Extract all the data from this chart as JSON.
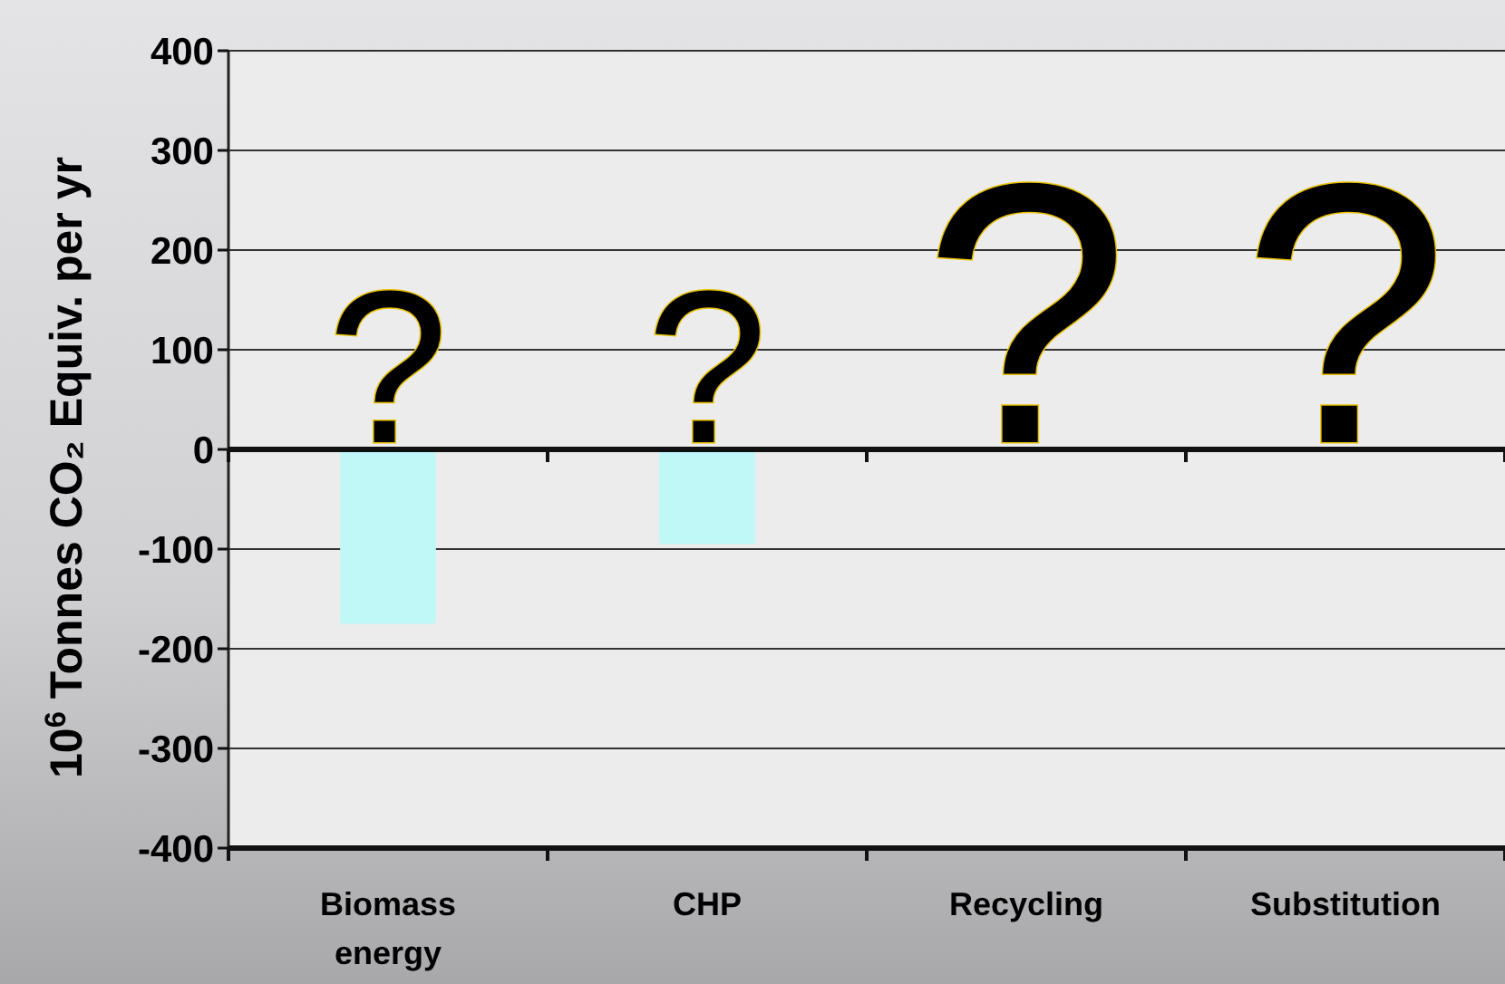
{
  "chart_data": {
    "type": "bar",
    "ylabel": "10$^{6}$ Tonnes CO₂ Equiv. per yr",
    "categories": [
      "Biomass energy",
      "CHP",
      "Recycling",
      "Substitution"
    ],
    "values": [
      -175,
      -95,
      null,
      null
    ],
    "color": "#c0f8f8",
    "ylim": [
      -400,
      400
    ],
    "yticks": [
      -400,
      -300,
      -200,
      -100,
      0,
      100,
      200,
      300,
      400
    ],
    "grid": "y",
    "annotations": [
      "?",
      "?",
      "?",
      "?"
    ]
  }
}
